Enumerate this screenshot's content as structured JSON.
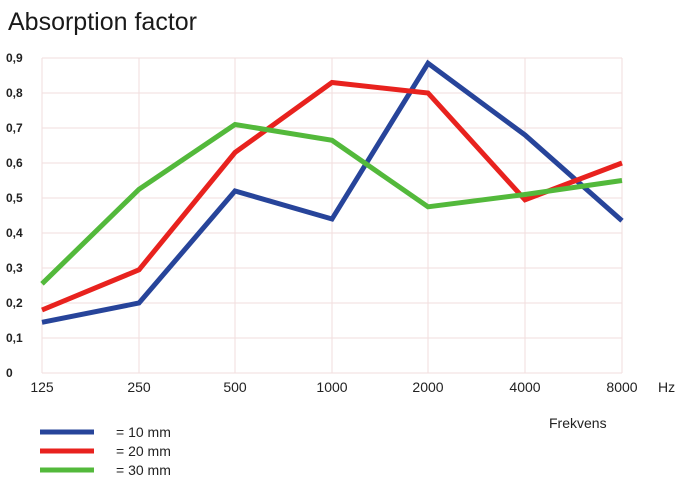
{
  "chart_data": {
    "type": "line",
    "title": "Absorption factor",
    "xlabel": "Frekvens",
    "x_unit": "Hz",
    "categories": [
      "125",
      "250",
      "500",
      "1000",
      "2000",
      "4000",
      "8000"
    ],
    "y_ticks": [
      "0",
      "0,1",
      "0,2",
      "0,3",
      "0,4",
      "0,5",
      "0,6",
      "0,7",
      "0,8",
      "0,9"
    ],
    "ylim": [
      0,
      0.9
    ],
    "grid": true,
    "legend_position": "bottom-left",
    "series": [
      {
        "name": "= 10 mm",
        "color": "#27449a",
        "values": [
          0.145,
          0.2,
          0.52,
          0.44,
          0.885,
          0.68,
          0.435
        ]
      },
      {
        "name": "= 20 mm",
        "color": "#e8221e",
        "values": [
          0.18,
          0.295,
          0.63,
          0.83,
          0.8,
          0.495,
          0.6
        ]
      },
      {
        "name": "= 30 mm",
        "color": "#53b93b",
        "values": [
          0.255,
          0.525,
          0.71,
          0.665,
          0.475,
          0.51,
          0.55
        ]
      }
    ]
  }
}
